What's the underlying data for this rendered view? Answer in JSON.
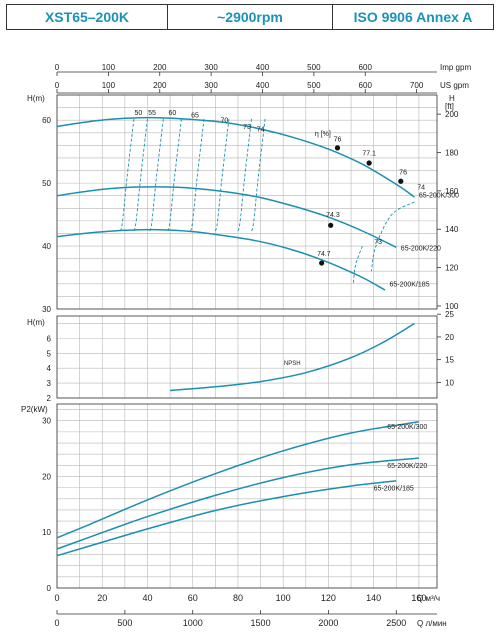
{
  "header": {
    "model": "XST65–200K",
    "speed": "~2900rpm",
    "standard": "ISO 9906   Annex A"
  },
  "colors": {
    "curve": "#1b8fb0",
    "header_text": "#1a93b6",
    "grid": "#b8b8b8",
    "axis": "#333333"
  },
  "chart_data": [
    {
      "type": "line",
      "id": "head",
      "ylabel": "H(m)",
      "ylabel_right": "H [ft]",
      "ylim": [
        30,
        64
      ],
      "yticks": [
        30,
        40,
        50,
        60
      ],
      "ylim_right_ft": [
        98.4,
        210
      ],
      "yticks_right_ft": [
        100,
        120,
        140,
        160,
        180,
        200
      ],
      "xlim": [
        0,
        168
      ],
      "top_axes": [
        {
          "label": "Imp gpm",
          "ticks": [
            0,
            100,
            200,
            300,
            400,
            500,
            600
          ]
        },
        {
          "label": "US gpm",
          "ticks": [
            0,
            100,
            200,
            300,
            400,
            500,
            600,
            700
          ]
        }
      ],
      "series": [
        {
          "name": "65-200K/300",
          "x": [
            0,
            15,
            30,
            45,
            60,
            75,
            90,
            105,
            120,
            135,
            150,
            158
          ],
          "y": [
            59.0,
            59.8,
            60.3,
            60.4,
            60.1,
            59.6,
            58.6,
            57.2,
            55.4,
            53.0,
            49.8,
            47.8
          ]
        },
        {
          "name": "65-200K/220",
          "x": [
            0,
            15,
            30,
            45,
            60,
            75,
            90,
            105,
            120,
            135,
            150
          ],
          "y": [
            48.0,
            48.8,
            49.3,
            49.4,
            49.2,
            48.6,
            47.7,
            46.3,
            44.6,
            42.4,
            39.8
          ]
        },
        {
          "name": "65-200K/185",
          "x": [
            0,
            15,
            30,
            45,
            60,
            75,
            90,
            105,
            120,
            135,
            145
          ],
          "y": [
            41.5,
            42.1,
            42.5,
            42.6,
            42.3,
            41.6,
            40.7,
            39.3,
            37.4,
            35.0,
            33.0
          ]
        }
      ],
      "efficiency_title": "η [%]",
      "efficiency_labels": [
        {
          "label": "50",
          "x": 36,
          "y": 60.8
        },
        {
          "label": "55",
          "x": 42,
          "y": 60.8
        },
        {
          "label": "60",
          "x": 51,
          "y": 60.8
        },
        {
          "label": "65",
          "x": 61,
          "y": 60.4
        },
        {
          "label": "70",
          "x": 74,
          "y": 59.6
        },
        {
          "label": "73",
          "x": 84,
          "y": 58.6
        },
        {
          "label": "74",
          "x": 90,
          "y": 58.2
        },
        {
          "label": "76",
          "x": 124,
          "y": 56.6
        },
        {
          "label": "77.1",
          "x": 138,
          "y": 54.4
        },
        {
          "label": "76",
          "x": 153,
          "y": 51.4
        },
        {
          "label": "74",
          "x": 161,
          "y": 49.0
        },
        {
          "label": "74.3",
          "x": 122,
          "y": 44.6
        },
        {
          "label": "73",
          "x": 142,
          "y": 40.3
        },
        {
          "label": "74.7",
          "x": 118,
          "y": 38.4
        }
      ],
      "markers": [
        {
          "x": 124,
          "y": 55.6
        },
        {
          "x": 138,
          "y": 53.2
        },
        {
          "x": 152,
          "y": 50.3
        },
        {
          "x": 121,
          "y": 43.3
        },
        {
          "x": 117,
          "y": 37.3
        }
      ]
    },
    {
      "type": "line",
      "id": "npsh",
      "ylabel": "H(m)",
      "ylim": [
        2,
        7.5
      ],
      "yticks": [
        2,
        3,
        4,
        5,
        6
      ],
      "yticks_right_ft": [
        10,
        15,
        20,
        25
      ],
      "xlim": [
        0,
        168
      ],
      "series": [
        {
          "name": "NPSH",
          "x": [
            50,
            70,
            90,
            110,
            130,
            145,
            158
          ],
          "y": [
            2.5,
            2.75,
            3.1,
            3.7,
            4.7,
            5.8,
            7.0
          ]
        }
      ]
    },
    {
      "type": "line",
      "id": "power",
      "ylabel": "P2(kW)",
      "ylim": [
        0,
        33
      ],
      "yticks": [
        0,
        10,
        20,
        30
      ],
      "xlim": [
        0,
        168
      ],
      "xlabel": "Q  м³/ч",
      "xticks": [
        0,
        20,
        40,
        60,
        80,
        100,
        120,
        140,
        160
      ],
      "xlabel2": "Q  л/мин",
      "xticks2": [
        0,
        500,
        1000,
        1500,
        2000,
        2500
      ],
      "series": [
        {
          "name": "65-200K/300",
          "x": [
            0,
            15,
            40,
            70,
            100,
            130,
            160
          ],
          "y": [
            9.0,
            11.5,
            15.8,
            20.5,
            24.6,
            27.8,
            29.8
          ]
        },
        {
          "name": "65-200K/220",
          "x": [
            0,
            15,
            40,
            70,
            100,
            130,
            160
          ],
          "y": [
            7.0,
            9.2,
            12.8,
            16.6,
            19.8,
            22.1,
            23.3
          ]
        },
        {
          "name": "65-200K/185",
          "x": [
            0,
            15,
            40,
            70,
            100,
            130,
            150
          ],
          "y": [
            5.8,
            7.6,
            10.6,
            13.9,
            16.4,
            18.3,
            19.2
          ]
        }
      ]
    }
  ]
}
